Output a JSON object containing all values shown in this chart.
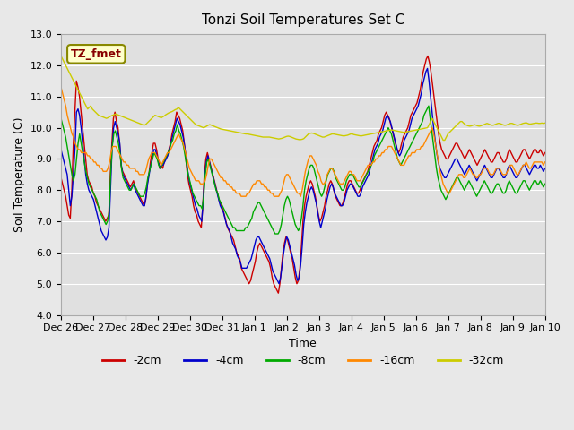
{
  "title": "Tonzi Soil Temperatures Set C",
  "xlabel": "Time",
  "ylabel": "Soil Temperature (C)",
  "ylim": [
    4.0,
    13.0
  ],
  "yticks": [
    4.0,
    5.0,
    6.0,
    7.0,
    8.0,
    9.0,
    10.0,
    11.0,
    12.0,
    13.0
  ],
  "xtick_labels": [
    "Dec 26",
    "Dec 27",
    "Dec 28",
    "Dec 29",
    "Dec 30",
    "Dec 31",
    "Jan 1",
    "Jan 2",
    "Jan 3",
    "Jan 4",
    "Jan 5",
    "Jan 6",
    "Jan 7",
    "Jan 8",
    "Jan 9",
    "Jan 10"
  ],
  "colors": {
    "-2cm": "#cc0000",
    "-4cm": "#0000cc",
    "-8cm": "#00aa00",
    "-16cm": "#ff8800",
    "-32cm": "#cccc00"
  },
  "legend_label": "TZ_fmet",
  "series_keys": [
    "-2cm",
    "-4cm",
    "-8cm",
    "-16cm",
    "-32cm"
  ],
  "series": {
    "-2cm": [
      8.4,
      8.2,
      8.0,
      7.8,
      7.5,
      7.2,
      7.1,
      8.0,
      9.5,
      10.5,
      11.5,
      11.3,
      11.0,
      10.5,
      10.0,
      9.5,
      9.0,
      8.5,
      8.3,
      8.2,
      8.1,
      7.9,
      7.8,
      7.6,
      7.5,
      7.4,
      7.3,
      7.2,
      7.1,
      7.0,
      7.1,
      7.2,
      8.5,
      9.5,
      10.3,
      10.5,
      10.2,
      10.0,
      9.5,
      8.8,
      8.6,
      8.5,
      8.4,
      8.3,
      8.2,
      8.1,
      8.2,
      8.3,
      8.1,
      8.0,
      7.9,
      7.8,
      7.7,
      7.6,
      7.5,
      7.7,
      8.2,
      8.5,
      8.9,
      9.2,
      9.5,
      9.5,
      9.3,
      9.0,
      8.7,
      8.8,
      8.7,
      8.9,
      9.0,
      9.1,
      9.3,
      9.5,
      9.8,
      10.0,
      10.2,
      10.5,
      10.4,
      10.3,
      10.1,
      9.9,
      9.5,
      9.0,
      8.5,
      8.2,
      8.0,
      7.8,
      7.5,
      7.3,
      7.2,
      7.0,
      6.9,
      6.8,
      7.5,
      8.5,
      9.0,
      9.2,
      9.0,
      8.8,
      8.6,
      8.4,
      8.2,
      8.0,
      7.8,
      7.6,
      7.5,
      7.4,
      7.2,
      7.0,
      6.8,
      6.7,
      6.6,
      6.5,
      6.4,
      6.2,
      6.0,
      5.9,
      5.8,
      5.5,
      5.4,
      5.3,
      5.2,
      5.1,
      5.0,
      5.1,
      5.3,
      5.5,
      5.7,
      6.0,
      6.2,
      6.3,
      6.2,
      6.1,
      6.0,
      5.9,
      5.8,
      5.7,
      5.5,
      5.2,
      5.0,
      4.9,
      4.8,
      4.7,
      5.0,
      5.5,
      6.0,
      6.3,
      6.5,
      6.4,
      6.2,
      6.0,
      5.8,
      5.5,
      5.2,
      5.0,
      5.1,
      5.5,
      6.2,
      7.0,
      7.5,
      7.8,
      8.0,
      8.2,
      8.3,
      8.2,
      8.0,
      7.8,
      7.5,
      7.2,
      7.0,
      7.1,
      7.3,
      7.5,
      7.8,
      8.0,
      8.2,
      8.3,
      8.2,
      8.0,
      7.8,
      7.7,
      7.6,
      7.5,
      7.5,
      7.6,
      7.8,
      8.0,
      8.2,
      8.3,
      8.3,
      8.2,
      8.1,
      8.0,
      7.9,
      7.9,
      8.0,
      8.2,
      8.3,
      8.4,
      8.5,
      8.6,
      8.8,
      9.0,
      9.2,
      9.4,
      9.5,
      9.6,
      9.8,
      9.9,
      10.0,
      10.2,
      10.4,
      10.5,
      10.4,
      10.3,
      10.1,
      9.9,
      9.7,
      9.5,
      9.3,
      9.2,
      9.3,
      9.5,
      9.7,
      9.8,
      9.9,
      10.0,
      10.2,
      10.4,
      10.5,
      10.6,
      10.7,
      10.8,
      11.0,
      11.2,
      11.5,
      11.8,
      12.0,
      12.2,
      12.3,
      12.1,
      11.8,
      11.4,
      11.0,
      10.6,
      10.2,
      9.8,
      9.5,
      9.3,
      9.2,
      9.1,
      9.0,
      9.0,
      9.1,
      9.2,
      9.3,
      9.4,
      9.5,
      9.5,
      9.4,
      9.3,
      9.2,
      9.1,
      9.0,
      9.1,
      9.2,
      9.3,
      9.2,
      9.1,
      9.0,
      8.9,
      8.8,
      8.9,
      9.0,
      9.1,
      9.2,
      9.3,
      9.2,
      9.1,
      9.0,
      8.9,
      8.9,
      9.0,
      9.1,
      9.2,
      9.2,
      9.1,
      9.0,
      8.9,
      8.9,
      9.0,
      9.2,
      9.3,
      9.2,
      9.1,
      9.0,
      8.9,
      8.9,
      9.0,
      9.1,
      9.2,
      9.3,
      9.3,
      9.2,
      9.1,
      9.0,
      9.1,
      9.2,
      9.3,
      9.3,
      9.2,
      9.2,
      9.3,
      9.2,
      9.1,
      9.2
    ],
    "-4cm": [
      9.3,
      9.1,
      8.9,
      8.7,
      8.5,
      8.0,
      7.5,
      7.8,
      8.5,
      9.3,
      10.5,
      10.6,
      10.4,
      10.0,
      9.5,
      9.0,
      8.5,
      8.2,
      8.0,
      7.9,
      7.8,
      7.7,
      7.5,
      7.3,
      7.1,
      6.9,
      6.7,
      6.6,
      6.5,
      6.4,
      6.5,
      6.8,
      8.0,
      9.3,
      10.0,
      10.2,
      10.0,
      9.8,
      9.5,
      8.8,
      8.5,
      8.4,
      8.3,
      8.2,
      8.1,
      8.0,
      8.1,
      8.2,
      8.0,
      7.9,
      7.8,
      7.7,
      7.6,
      7.5,
      7.5,
      7.8,
      8.2,
      8.5,
      8.8,
      9.0,
      9.3,
      9.3,
      9.1,
      8.9,
      8.7,
      8.8,
      8.8,
      8.9,
      9.0,
      9.1,
      9.3,
      9.5,
      9.7,
      9.9,
      10.1,
      10.3,
      10.2,
      10.1,
      9.9,
      9.7,
      9.4,
      9.0,
      8.6,
      8.3,
      8.1,
      7.9,
      7.7,
      7.5,
      7.4,
      7.2,
      7.1,
      7.0,
      7.7,
      8.5,
      8.9,
      9.1,
      8.9,
      8.7,
      8.5,
      8.3,
      8.1,
      7.9,
      7.7,
      7.5,
      7.4,
      7.3,
      7.1,
      6.9,
      6.8,
      6.7,
      6.5,
      6.3,
      6.2,
      6.1,
      5.9,
      5.8,
      5.7,
      5.5,
      5.5,
      5.5,
      5.5,
      5.6,
      5.7,
      5.8,
      6.0,
      6.2,
      6.4,
      6.5,
      6.5,
      6.4,
      6.3,
      6.2,
      6.1,
      6.0,
      5.9,
      5.8,
      5.6,
      5.4,
      5.3,
      5.2,
      5.1,
      5.0,
      5.2,
      5.6,
      6.0,
      6.3,
      6.5,
      6.4,
      6.2,
      6.0,
      5.8,
      5.6,
      5.3,
      5.1,
      5.2,
      5.6,
      6.2,
      6.9,
      7.3,
      7.6,
      7.8,
      8.0,
      8.1,
      8.0,
      7.8,
      7.6,
      7.3,
      7.0,
      6.8,
      7.0,
      7.2,
      7.4,
      7.7,
      7.9,
      8.1,
      8.2,
      8.1,
      7.9,
      7.8,
      7.7,
      7.6,
      7.5,
      7.5,
      7.6,
      7.8,
      8.0,
      8.1,
      8.2,
      8.2,
      8.1,
      8.0,
      7.9,
      7.8,
      7.8,
      7.9,
      8.1,
      8.2,
      8.3,
      8.4,
      8.5,
      8.7,
      8.9,
      9.1,
      9.3,
      9.4,
      9.5,
      9.7,
      9.8,
      9.9,
      10.1,
      10.3,
      10.4,
      10.3,
      10.2,
      10.0,
      9.8,
      9.6,
      9.4,
      9.2,
      9.1,
      9.2,
      9.4,
      9.6,
      9.7,
      9.8,
      9.9,
      10.1,
      10.3,
      10.4,
      10.5,
      10.6,
      10.7,
      10.9,
      11.1,
      11.4,
      11.6,
      11.8,
      11.9,
      11.5,
      11.0,
      10.5,
      10.0,
      9.6,
      9.2,
      8.9,
      8.7,
      8.6,
      8.5,
      8.4,
      8.4,
      8.5,
      8.6,
      8.7,
      8.8,
      8.9,
      9.0,
      9.0,
      8.9,
      8.8,
      8.7,
      8.6,
      8.5,
      8.6,
      8.7,
      8.8,
      8.7,
      8.6,
      8.5,
      8.4,
      8.3,
      8.4,
      8.5,
      8.6,
      8.7,
      8.8,
      8.7,
      8.6,
      8.5,
      8.4,
      8.4,
      8.5,
      8.6,
      8.7,
      8.7,
      8.6,
      8.5,
      8.4,
      8.4,
      8.5,
      8.7,
      8.8,
      8.7,
      8.6,
      8.5,
      8.4,
      8.4,
      8.5,
      8.6,
      8.7,
      8.8,
      8.8,
      8.7,
      8.6,
      8.5,
      8.6,
      8.7,
      8.8,
      8.8,
      8.7,
      8.7,
      8.8,
      8.7,
      8.6,
      8.7
    ],
    "-8cm": [
      10.3,
      10.1,
      9.9,
      9.7,
      9.4,
      9.1,
      8.8,
      8.5,
      8.3,
      8.5,
      9.0,
      9.5,
      9.8,
      9.5,
      9.2,
      8.9,
      8.6,
      8.4,
      8.2,
      8.1,
      8.0,
      7.9,
      7.8,
      7.7,
      7.5,
      7.3,
      7.2,
      7.1,
      7.0,
      6.9,
      7.0,
      7.3,
      8.5,
      9.4,
      9.8,
      9.9,
      9.7,
      9.5,
      9.2,
      8.7,
      8.4,
      8.3,
      8.2,
      8.1,
      8.0,
      8.0,
      8.1,
      8.2,
      8.1,
      8.0,
      7.9,
      7.8,
      7.8,
      7.8,
      7.9,
      8.1,
      8.4,
      8.6,
      8.8,
      9.0,
      9.2,
      9.1,
      9.0,
      8.8,
      8.7,
      8.8,
      8.9,
      9.0,
      9.1,
      9.2,
      9.3,
      9.5,
      9.6,
      9.8,
      9.9,
      10.1,
      9.9,
      9.8,
      9.6,
      9.4,
      9.1,
      8.8,
      8.5,
      8.3,
      8.1,
      7.9,
      7.8,
      7.7,
      7.6,
      7.5,
      7.5,
      7.4,
      7.8,
      8.5,
      8.9,
      9.0,
      8.8,
      8.6,
      8.4,
      8.2,
      8.0,
      7.9,
      7.7,
      7.6,
      7.5,
      7.4,
      7.3,
      7.2,
      7.1,
      7.0,
      6.9,
      6.8,
      6.8,
      6.7,
      6.7,
      6.7,
      6.7,
      6.7,
      6.7,
      6.8,
      6.8,
      6.9,
      7.0,
      7.1,
      7.3,
      7.4,
      7.5,
      7.6,
      7.6,
      7.5,
      7.4,
      7.3,
      7.2,
      7.1,
      7.0,
      6.9,
      6.8,
      6.7,
      6.6,
      6.6,
      6.6,
      6.7,
      6.9,
      7.2,
      7.5,
      7.7,
      7.8,
      7.7,
      7.5,
      7.3,
      7.1,
      6.9,
      6.8,
      6.7,
      6.8,
      7.1,
      7.5,
      8.0,
      8.3,
      8.5,
      8.7,
      8.8,
      8.8,
      8.7,
      8.5,
      8.3,
      8.1,
      7.9,
      7.8,
      7.9,
      8.1,
      8.3,
      8.5,
      8.6,
      8.7,
      8.7,
      8.6,
      8.4,
      8.3,
      8.2,
      8.1,
      8.0,
      8.0,
      8.1,
      8.3,
      8.4,
      8.5,
      8.5,
      8.5,
      8.4,
      8.3,
      8.2,
      8.1,
      8.1,
      8.2,
      8.3,
      8.4,
      8.5,
      8.6,
      8.7,
      8.8,
      8.9,
      9.1,
      9.2,
      9.3,
      9.4,
      9.5,
      9.6,
      9.7,
      9.8,
      9.9,
      10.0,
      9.9,
      9.8,
      9.6,
      9.4,
      9.2,
      9.0,
      8.9,
      8.8,
      8.9,
      9.0,
      9.1,
      9.2,
      9.3,
      9.4,
      9.5,
      9.6,
      9.7,
      9.8,
      9.9,
      10.0,
      10.1,
      10.2,
      10.4,
      10.5,
      10.6,
      10.7,
      10.3,
      9.9,
      9.5,
      9.1,
      8.7,
      8.4,
      8.2,
      8.0,
      7.9,
      7.8,
      7.7,
      7.8,
      7.9,
      8.0,
      8.1,
      8.2,
      8.3,
      8.4,
      8.4,
      8.3,
      8.2,
      8.1,
      8.0,
      8.1,
      8.2,
      8.3,
      8.2,
      8.1,
      8.0,
      7.9,
      7.8,
      7.9,
      8.0,
      8.1,
      8.2,
      8.3,
      8.2,
      8.1,
      8.0,
      7.9,
      7.9,
      8.0,
      8.1,
      8.2,
      8.2,
      8.1,
      8.0,
      7.9,
      7.9,
      8.0,
      8.2,
      8.3,
      8.2,
      8.1,
      8.0,
      7.9,
      7.9,
      8.0,
      8.1,
      8.2,
      8.3,
      8.3,
      8.2,
      8.1,
      8.0,
      8.1,
      8.2,
      8.3,
      8.3,
      8.2,
      8.2,
      8.3,
      8.2,
      8.1,
      8.2
    ],
    "-16cm": [
      11.3,
      11.1,
      10.9,
      10.7,
      10.4,
      10.2,
      10.0,
      9.8,
      9.7,
      9.5,
      9.4,
      9.3,
      9.3,
      9.2,
      9.2,
      9.2,
      9.2,
      9.1,
      9.1,
      9.0,
      9.0,
      8.9,
      8.9,
      8.8,
      8.8,
      8.7,
      8.7,
      8.6,
      8.6,
      8.6,
      8.7,
      8.9,
      9.2,
      9.4,
      9.4,
      9.4,
      9.3,
      9.2,
      9.1,
      9.0,
      8.9,
      8.9,
      8.8,
      8.8,
      8.7,
      8.7,
      8.7,
      8.7,
      8.6,
      8.6,
      8.5,
      8.5,
      8.5,
      8.5,
      8.6,
      8.8,
      9.0,
      9.1,
      9.2,
      9.2,
      9.2,
      9.1,
      9.0,
      8.9,
      8.8,
      8.9,
      9.0,
      9.1,
      9.2,
      9.2,
      9.3,
      9.4,
      9.5,
      9.6,
      9.7,
      9.8,
      9.7,
      9.6,
      9.5,
      9.3,
      9.1,
      8.9,
      8.7,
      8.6,
      8.5,
      8.4,
      8.3,
      8.3,
      8.3,
      8.2,
      8.2,
      8.2,
      8.3,
      8.5,
      8.8,
      9.0,
      9.0,
      8.9,
      8.8,
      8.7,
      8.6,
      8.5,
      8.4,
      8.4,
      8.3,
      8.3,
      8.2,
      8.2,
      8.1,
      8.1,
      8.0,
      8.0,
      7.9,
      7.9,
      7.9,
      7.8,
      7.8,
      7.8,
      7.8,
      7.9,
      7.9,
      8.0,
      8.1,
      8.2,
      8.2,
      8.3,
      8.3,
      8.3,
      8.2,
      8.2,
      8.1,
      8.1,
      8.0,
      8.0,
      7.9,
      7.9,
      7.8,
      7.8,
      7.8,
      7.8,
      7.9,
      8.0,
      8.2,
      8.4,
      8.5,
      8.5,
      8.4,
      8.3,
      8.2,
      8.1,
      8.0,
      7.9,
      7.9,
      7.8,
      8.0,
      8.3,
      8.6,
      8.8,
      9.0,
      9.1,
      9.1,
      9.0,
      8.9,
      8.8,
      8.6,
      8.5,
      8.3,
      8.2,
      8.2,
      8.3,
      8.5,
      8.6,
      8.7,
      8.7,
      8.6,
      8.5,
      8.4,
      8.3,
      8.2,
      8.2,
      8.2,
      8.3,
      8.4,
      8.5,
      8.6,
      8.6,
      8.5,
      8.5,
      8.4,
      8.3,
      8.3,
      8.3,
      8.4,
      8.5,
      8.6,
      8.7,
      8.8,
      8.8,
      8.8,
      8.9,
      8.9,
      9.0,
      9.0,
      9.1,
      9.1,
      9.2,
      9.2,
      9.3,
      9.3,
      9.4,
      9.4,
      9.4,
      9.3,
      9.2,
      9.1,
      9.0,
      8.9,
      8.8,
      8.8,
      8.8,
      8.9,
      9.0,
      9.1,
      9.1,
      9.2,
      9.2,
      9.2,
      9.3,
      9.3,
      9.3,
      9.4,
      9.4,
      9.5,
      9.6,
      9.7,
      9.8,
      9.9,
      10.0,
      9.8,
      9.5,
      9.2,
      8.9,
      8.6,
      8.4,
      8.2,
      8.1,
      8.0,
      7.9,
      7.9,
      8.0,
      8.1,
      8.2,
      8.3,
      8.4,
      8.5,
      8.5,
      8.5,
      8.4,
      8.4,
      8.5,
      8.6,
      8.7,
      8.6,
      8.5,
      8.5,
      8.4,
      8.4,
      8.5,
      8.5,
      8.6,
      8.7,
      8.7,
      8.7,
      8.6,
      8.5,
      8.5,
      8.5,
      8.6,
      8.7,
      8.7,
      8.7,
      8.6,
      8.5,
      8.5,
      8.5,
      8.6,
      8.7,
      8.8,
      8.8,
      8.7,
      8.6,
      8.5,
      8.5,
      8.6,
      8.7,
      8.8,
      8.8,
      8.9,
      8.8,
      8.7,
      8.7,
      8.8,
      8.9,
      8.9,
      8.9,
      8.9,
      8.9,
      8.9,
      8.8,
      8.9
    ],
    "-32cm": [
      12.3,
      12.2,
      12.1,
      12.0,
      11.9,
      11.8,
      11.7,
      11.6,
      11.5,
      11.4,
      11.3,
      11.2,
      11.1,
      11.0,
      10.9,
      10.8,
      10.7,
      10.6,
      10.65,
      10.7,
      10.6,
      10.55,
      10.5,
      10.45,
      10.4,
      10.38,
      10.36,
      10.34,
      10.32,
      10.3,
      10.32,
      10.35,
      10.38,
      10.4,
      10.42,
      10.44,
      10.42,
      10.4,
      10.38,
      10.36,
      10.34,
      10.32,
      10.3,
      10.28,
      10.26,
      10.24,
      10.22,
      10.2,
      10.18,
      10.16,
      10.14,
      10.12,
      10.1,
      10.08,
      10.1,
      10.15,
      10.2,
      10.25,
      10.3,
      10.35,
      10.4,
      10.38,
      10.36,
      10.34,
      10.32,
      10.35,
      10.38,
      10.42,
      10.45,
      10.48,
      10.5,
      10.52,
      10.55,
      10.58,
      10.6,
      10.65,
      10.6,
      10.55,
      10.5,
      10.45,
      10.4,
      10.35,
      10.3,
      10.25,
      10.2,
      10.15,
      10.1,
      10.08,
      10.06,
      10.04,
      10.02,
      10.0,
      10.02,
      10.05,
      10.08,
      10.1,
      10.08,
      10.06,
      10.04,
      10.02,
      10.0,
      9.98,
      9.96,
      9.95,
      9.94,
      9.93,
      9.92,
      9.91,
      9.9,
      9.89,
      9.88,
      9.87,
      9.86,
      9.85,
      9.84,
      9.83,
      9.82,
      9.81,
      9.8,
      9.8,
      9.79,
      9.78,
      9.77,
      9.76,
      9.75,
      9.74,
      9.73,
      9.72,
      9.71,
      9.7,
      9.7,
      9.7,
      9.7,
      9.7,
      9.69,
      9.68,
      9.67,
      9.66,
      9.65,
      9.64,
      9.65,
      9.66,
      9.68,
      9.7,
      9.72,
      9.73,
      9.72,
      9.7,
      9.68,
      9.66,
      9.64,
      9.63,
      9.62,
      9.62,
      9.63,
      9.65,
      9.7,
      9.75,
      9.8,
      9.82,
      9.83,
      9.82,
      9.8,
      9.78,
      9.76,
      9.74,
      9.72,
      9.7,
      9.7,
      9.72,
      9.74,
      9.76,
      9.78,
      9.8,
      9.8,
      9.79,
      9.78,
      9.77,
      9.76,
      9.75,
      9.74,
      9.74,
      9.75,
      9.76,
      9.78,
      9.8,
      9.8,
      9.78,
      9.77,
      9.76,
      9.75,
      9.74,
      9.74,
      9.75,
      9.76,
      9.77,
      9.78,
      9.79,
      9.8,
      9.81,
      9.82,
      9.83,
      9.84,
      9.85,
      9.86,
      9.87,
      9.88,
      9.89,
      9.9,
      9.91,
      9.92,
      9.93,
      9.92,
      9.91,
      9.9,
      9.89,
      9.88,
      9.87,
      9.86,
      9.85,
      9.86,
      9.87,
      9.88,
      9.89,
      9.9,
      9.91,
      9.92,
      9.93,
      9.94,
      9.95,
      9.96,
      9.97,
      9.98,
      9.99,
      10.0,
      10.1,
      10.2,
      10.3,
      10.2,
      10.1,
      10.0,
      9.9,
      9.8,
      9.7,
      9.6,
      9.6,
      9.7,
      9.8,
      9.85,
      9.9,
      9.95,
      10.0,
      10.05,
      10.1,
      10.15,
      10.2,
      10.2,
      10.15,
      10.1,
      10.08,
      10.06,
      10.05,
      10.06,
      10.08,
      10.1,
      10.08,
      10.06,
      10.05,
      10.06,
      10.08,
      10.1,
      10.12,
      10.14,
      10.12,
      10.1,
      10.08,
      10.08,
      10.1,
      10.12,
      10.14,
      10.14,
      10.12,
      10.1,
      10.08,
      10.08,
      10.1,
      10.12,
      10.14,
      10.14,
      10.12,
      10.1,
      10.08,
      10.08,
      10.1,
      10.12,
      10.14,
      10.15,
      10.16,
      10.14,
      10.12,
      10.12,
      10.13,
      10.14,
      10.15,
      10.15,
      10.14,
      10.14,
      10.15,
      10.14,
      10.15
    ]
  }
}
